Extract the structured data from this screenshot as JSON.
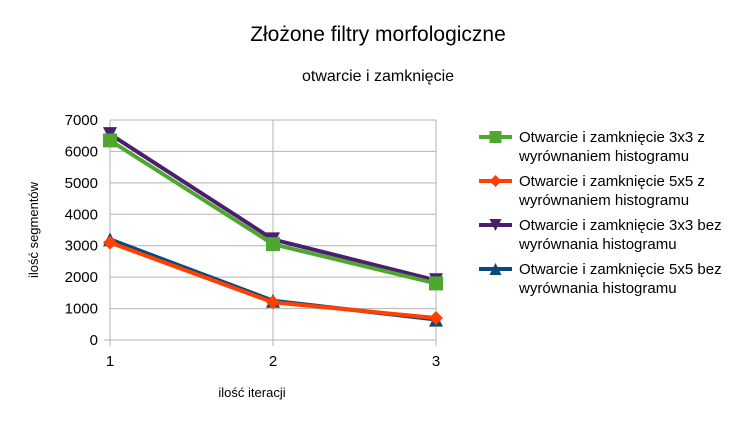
{
  "chart_data": {
    "type": "line",
    "title": "Złożone filtry morfologiczne",
    "subtitle": "otwarcie i zamknięcie",
    "xlabel": "ilość iteracji",
    "ylabel": "ilość segmentów",
    "categories": [
      "1",
      "2",
      "3"
    ],
    "ylim": [
      0,
      7000
    ],
    "yticks": [
      0,
      1000,
      2000,
      3000,
      4000,
      5000,
      6000,
      7000
    ],
    "grid": true,
    "legend_position": "right",
    "series": [
      {
        "name_lines": [
          "Otwarcie i zamknięcie 3x3 z",
          "wyrównaniem histogramu"
        ],
        "values": [
          6350,
          3050,
          1800
        ],
        "color": "#4ea72e",
        "marker": "square"
      },
      {
        "name_lines": [
          "Otwarcie i zamknięcie 5x5 z",
          "wyrównaniem histogramu"
        ],
        "values": [
          3100,
          1200,
          700
        ],
        "color": "#ff4000",
        "marker": "diamond"
      },
      {
        "name_lines": [
          "Otwarcie i zamknięcie 3x3 bez",
          "wyrównania histogramu"
        ],
        "values": [
          6550,
          3200,
          1900
        ],
        "color": "#4b1f6f",
        "marker": "triangle-down"
      },
      {
        "name_lines": [
          "Otwarcie i zamknięcie 5x5 bez",
          "wyrównania histogramu"
        ],
        "values": [
          3200,
          1250,
          650
        ],
        "color": "#0a4a7b",
        "marker": "triangle-up"
      }
    ]
  }
}
